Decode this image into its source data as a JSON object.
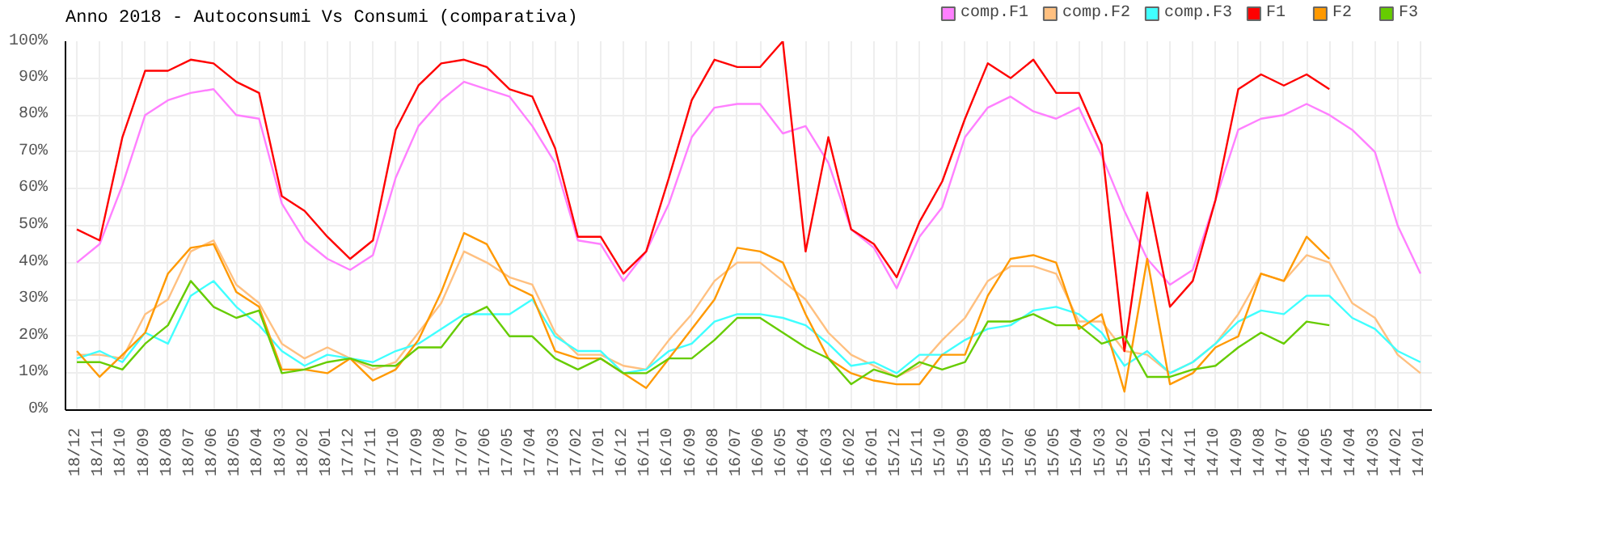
{
  "chart_data": {
    "type": "line",
    "title": "Anno 2018 - Autoconsumi Vs Consumi (comparativa)",
    "categories": [
      "18/12",
      "18/11",
      "18/10",
      "18/09",
      "18/08",
      "18/07",
      "18/06",
      "18/05",
      "18/04",
      "18/03",
      "18/02",
      "18/01",
      "17/12",
      "17/11",
      "17/10",
      "17/09",
      "17/08",
      "17/07",
      "17/06",
      "17/05",
      "17/04",
      "17/03",
      "17/02",
      "17/01",
      "16/12",
      "16/11",
      "16/10",
      "16/09",
      "16/08",
      "16/07",
      "16/06",
      "16/05",
      "16/04",
      "16/03",
      "16/02",
      "16/01",
      "15/12",
      "15/11",
      "15/10",
      "15/09",
      "15/08",
      "15/07",
      "15/06",
      "15/05",
      "15/04",
      "15/03",
      "15/02",
      "15/01",
      "14/12",
      "14/11",
      "14/10",
      "14/09",
      "14/08",
      "14/07",
      "14/06",
      "14/05",
      "14/04",
      "14/03",
      "14/02",
      "14/01"
    ],
    "series": [
      {
        "name": "comp.F1",
        "color": "#ff80ff",
        "values": [
          40,
          45,
          61,
          80,
          84,
          86,
          87,
          80,
          79,
          56,
          46,
          41,
          38,
          42,
          63,
          77,
          84,
          89,
          87,
          85,
          77,
          67,
          46,
          45,
          35,
          43,
          56,
          74,
          82,
          83,
          83,
          75,
          77,
          67,
          49,
          44,
          33,
          47,
          55,
          74,
          82,
          85,
          81,
          79,
          82,
          69,
          54,
          41,
          34,
          38,
          57,
          76,
          79,
          80,
          83,
          80,
          76,
          70,
          50,
          37
        ]
      },
      {
        "name": "comp.F2",
        "color": "#ffc080",
        "values": [
          15,
          15,
          14,
          26,
          30,
          43,
          46,
          34,
          29,
          18,
          14,
          17,
          14,
          11,
          13,
          21,
          29,
          43,
          40,
          36,
          34,
          21,
          15,
          15,
          12,
          11,
          19,
          26,
          35,
          40,
          40,
          35,
          30,
          21,
          15,
          12,
          9,
          12,
          19,
          25,
          35,
          39,
          39,
          37,
          24,
          24,
          16,
          15,
          10,
          13,
          18,
          26,
          37,
          35,
          42,
          40,
          29,
          25,
          15,
          10
        ]
      },
      {
        "name": "comp.F3",
        "color": "#40ffff",
        "values": [
          14,
          16,
          13,
          21,
          18,
          31,
          35,
          28,
          23,
          16,
          12,
          15,
          14,
          13,
          16,
          18,
          22,
          26,
          26,
          26,
          30,
          20,
          16,
          16,
          10,
          11,
          16,
          18,
          24,
          26,
          26,
          25,
          23,
          18,
          12,
          13,
          10,
          15,
          15,
          19,
          22,
          23,
          27,
          28,
          26,
          21,
          12,
          16,
          10,
          13,
          18,
          24,
          27,
          26,
          31,
          31,
          25,
          22,
          16,
          13
        ]
      },
      {
        "name": "F1",
        "color": "#ff0000",
        "values": [
          49,
          46,
          74,
          92,
          92,
          95,
          94,
          89,
          86,
          58,
          54,
          47,
          41,
          46,
          76,
          88,
          94,
          95,
          93,
          87,
          85,
          71,
          47,
          47,
          37,
          43,
          63,
          84,
          95,
          93,
          93,
          100,
          43,
          74,
          49,
          45,
          36,
          51,
          62,
          79,
          94,
          90,
          95,
          86,
          86,
          72,
          16,
          59,
          28,
          35,
          57,
          87,
          91,
          88,
          91,
          87,
          null,
          null,
          null,
          null
        ]
      },
      {
        "name": "F2",
        "color": "#ff9900",
        "values": [
          16,
          9,
          15,
          21,
          37,
          44,
          45,
          32,
          28,
          11,
          11,
          10,
          14,
          8,
          11,
          19,
          32,
          48,
          45,
          34,
          31,
          16,
          14,
          14,
          10,
          6,
          14,
          22,
          30,
          44,
          43,
          40,
          26,
          14,
          10,
          8,
          7,
          7,
          15,
          15,
          31,
          41,
          42,
          40,
          22,
          26,
          5,
          41,
          7,
          10,
          17,
          20,
          37,
          35,
          47,
          41,
          null,
          null,
          null,
          null
        ]
      },
      {
        "name": "F3",
        "color": "#66cc00",
        "values": [
          13,
          13,
          11,
          18,
          23,
          35,
          28,
          25,
          27,
          10,
          11,
          13,
          14,
          12,
          12,
          17,
          17,
          25,
          28,
          20,
          20,
          14,
          11,
          14,
          10,
          10,
          14,
          14,
          19,
          25,
          25,
          21,
          17,
          14,
          7,
          11,
          9,
          13,
          11,
          13,
          24,
          24,
          26,
          23,
          23,
          18,
          20,
          9,
          9,
          11,
          12,
          17,
          21,
          18,
          24,
          23,
          null,
          null,
          null,
          null
        ]
      }
    ],
    "ylim": [
      0,
      100
    ],
    "yticks": [
      {
        "value": 0,
        "label": "0%"
      },
      {
        "value": 10,
        "label": "10%"
      },
      {
        "value": 20,
        "label": "20%"
      },
      {
        "value": 30,
        "label": "30%"
      },
      {
        "value": 40,
        "label": "40%"
      },
      {
        "value": 50,
        "label": "50%"
      },
      {
        "value": 60,
        "label": "60%"
      },
      {
        "value": 70,
        "label": "70%"
      },
      {
        "value": 80,
        "label": "80%"
      },
      {
        "value": 90,
        "label": "90%"
      },
      {
        "value": 100,
        "label": "100%"
      }
    ],
    "grid": true,
    "legend": "top right",
    "marker": "none",
    "line_style": "solid"
  }
}
